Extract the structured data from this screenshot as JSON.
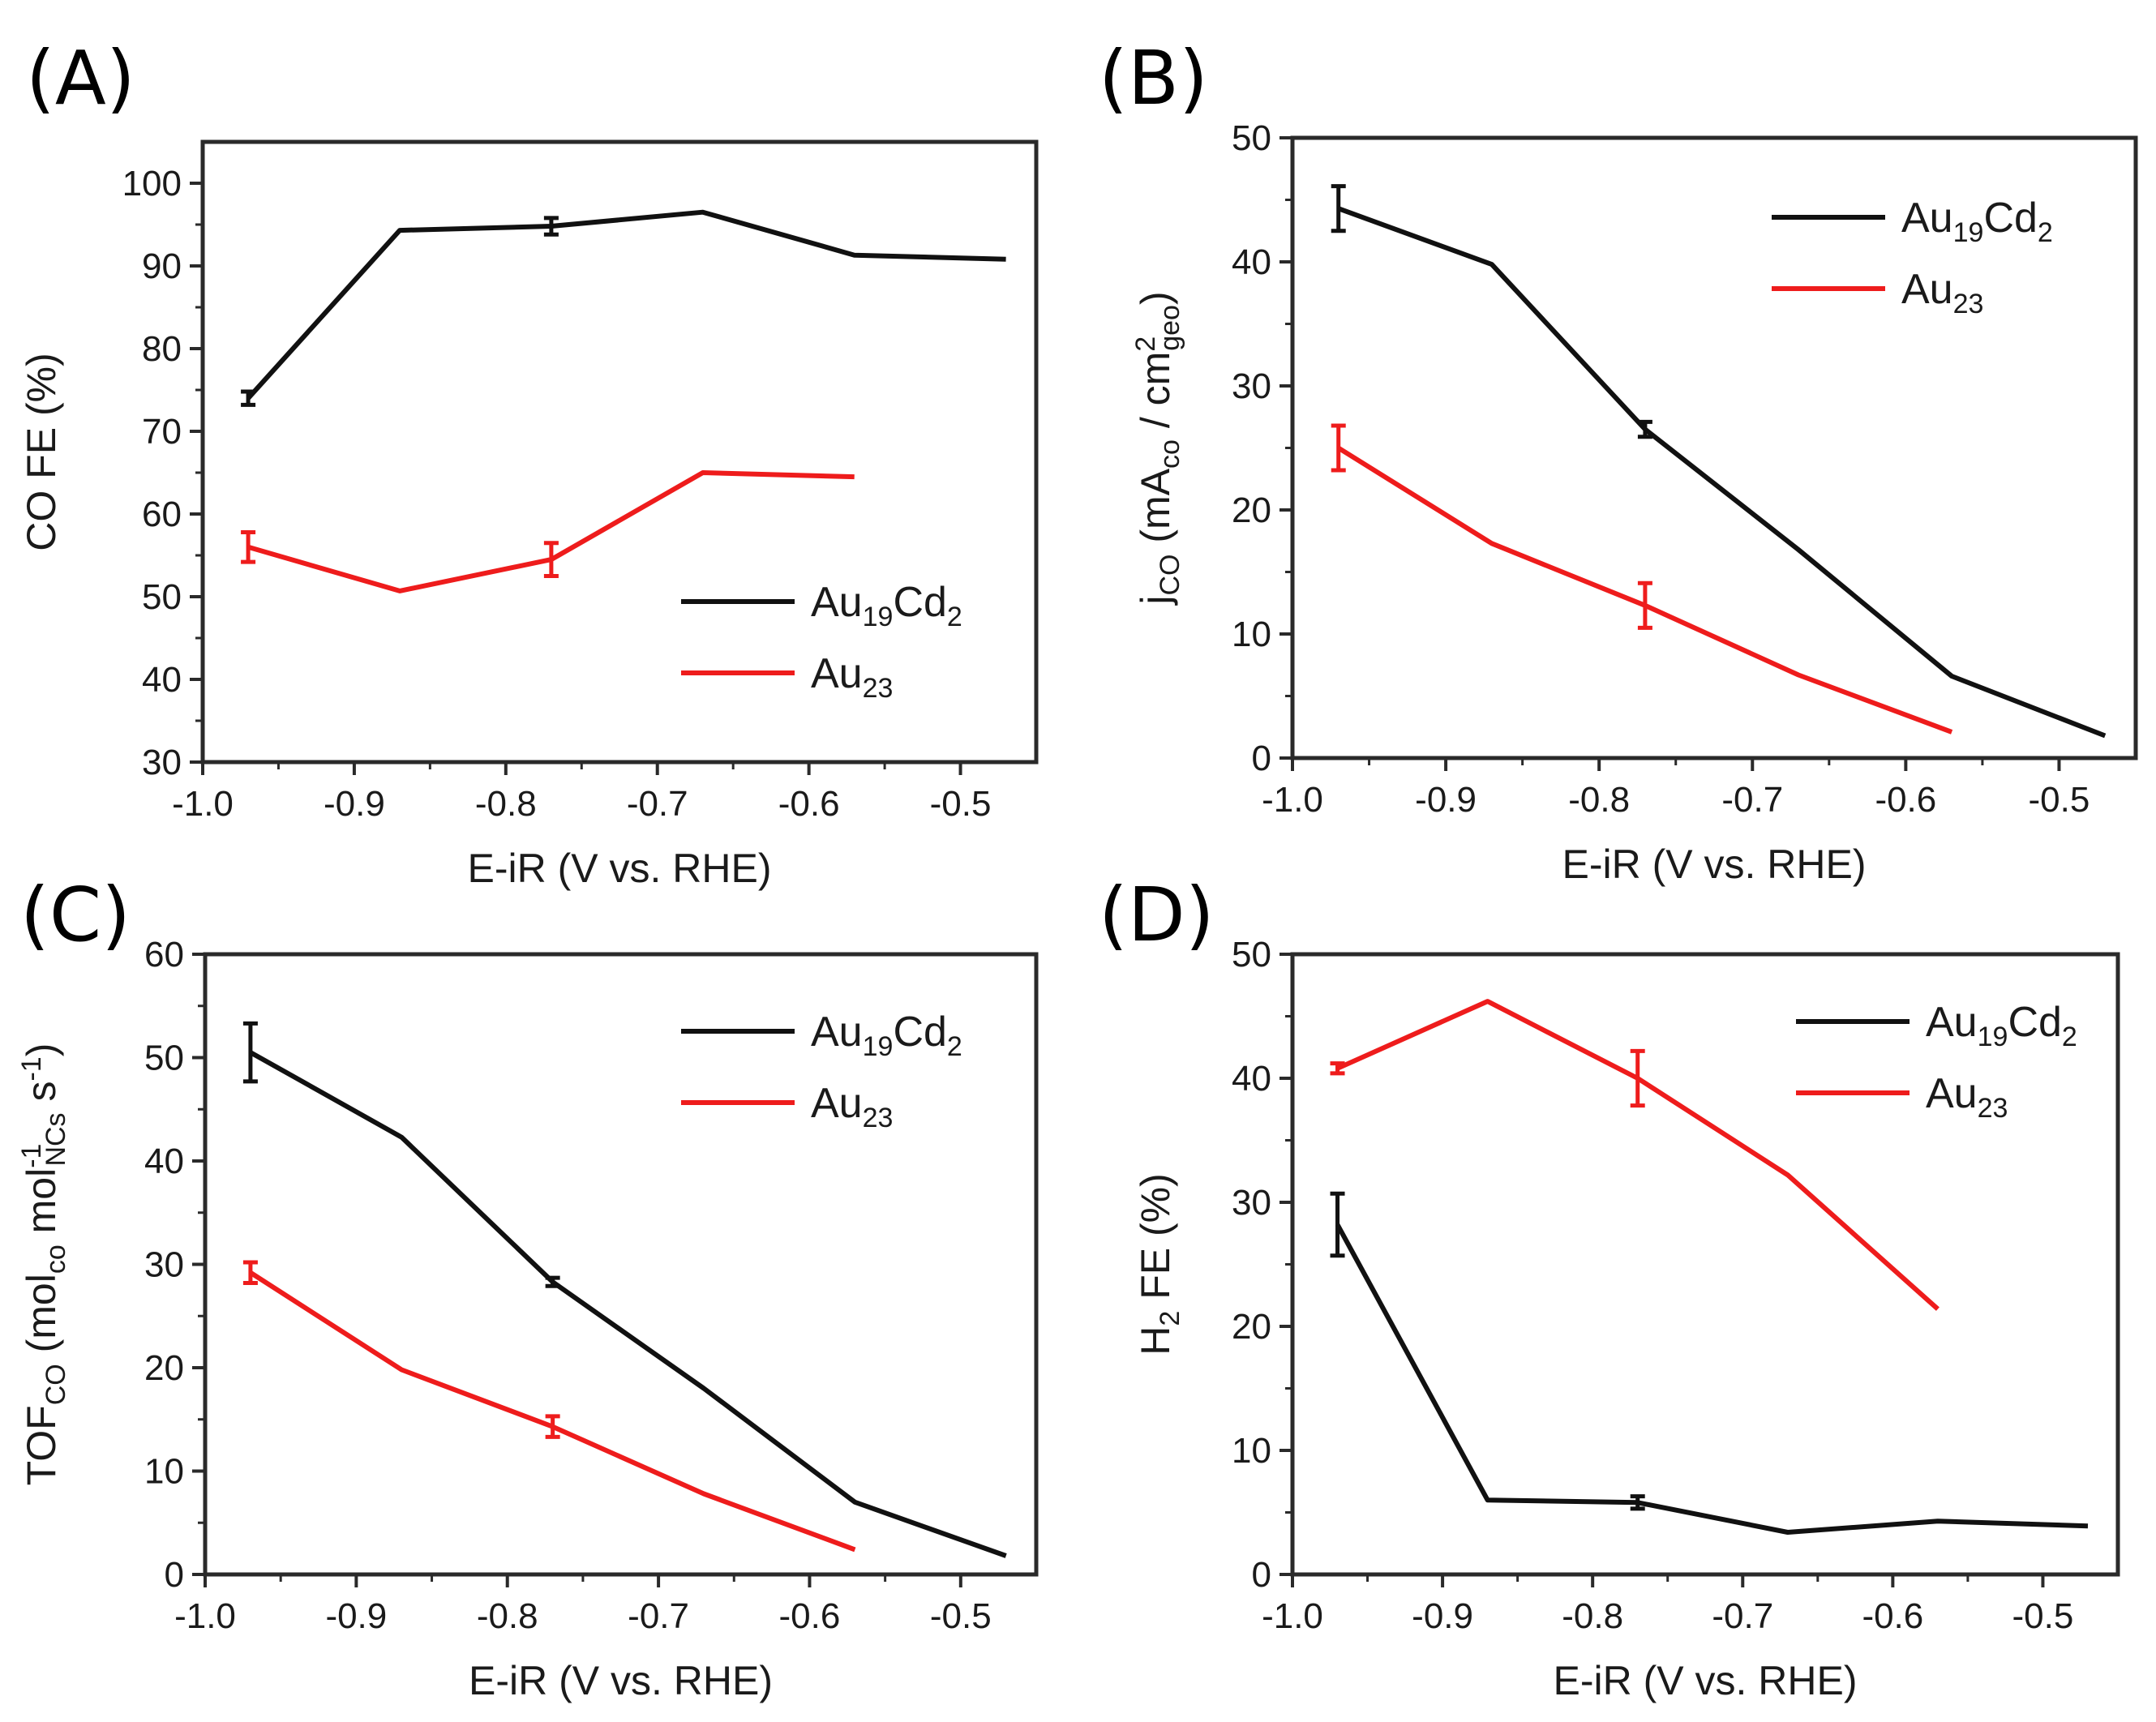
{
  "colors": {
    "Au19Cd2": "#111111",
    "Au23": "#ee1c1c"
  },
  "legend": {
    "Au19Cd2": {
      "base": "Au",
      "sub1": "19",
      "mid": "Cd",
      "sub2": "2"
    },
    "Au23": {
      "base": "Au",
      "sub1": "23"
    }
  },
  "chart_data": [
    {
      "type": "line",
      "panel": "(A)",
      "xlabel": "E-iR (V vs. RHE)",
      "ylabel": "CO FE (%)",
      "xlim": [
        -1.0,
        -0.45
      ],
      "ylim": [
        30,
        105
      ],
      "xticks": [
        -1.0,
        -0.9,
        -0.8,
        -0.7,
        -0.6,
        -0.5
      ],
      "xtick_labels": [
        "-1.0",
        "-0.9",
        "-0.8",
        "-0.7",
        "-0.6",
        "-0.5"
      ],
      "yticks": [
        30,
        40,
        50,
        60,
        70,
        80,
        90,
        100
      ],
      "ytick_labels": [
        "30",
        "40",
        "50",
        "60",
        "70",
        "80",
        "90",
        "100"
      ],
      "legend_position": "lower-right",
      "series": [
        {
          "name": "Au19Cd2",
          "x": [
            -0.97,
            -0.87,
            -0.77,
            -0.67,
            -0.57,
            -0.47
          ],
          "y": [
            74,
            94.3,
            94.8,
            96.5,
            91.3,
            90.8
          ],
          "err": [
            0.8,
            0,
            1.0,
            0,
            0,
            0
          ]
        },
        {
          "name": "Au23",
          "x": [
            -0.97,
            -0.87,
            -0.77,
            -0.67,
            -0.57
          ],
          "y": [
            56,
            50.7,
            54.5,
            65,
            64.5
          ],
          "err": [
            1.8,
            0,
            2.0,
            0,
            0
          ]
        }
      ]
    },
    {
      "type": "line",
      "panel": "(B)",
      "xlabel": "E-iR (V vs. RHE)",
      "ylabel": "jCO (mACO / cm2geo)",
      "ylabel_parts": {
        "j": "j",
        "jsub": "CO",
        "open": " (mA",
        "asub": "co",
        "mid": " / cm",
        "sup": "2",
        "gsub": "geo",
        "close": ")"
      },
      "xlim": [
        -1.0,
        -0.45
      ],
      "ylim": [
        0,
        50
      ],
      "xticks": [
        -1.0,
        -0.9,
        -0.8,
        -0.7,
        -0.6,
        -0.5
      ],
      "xtick_labels": [
        "-1.0",
        "-0.9",
        "-0.8",
        "-0.7",
        "-0.6",
        "-0.5"
      ],
      "yticks": [
        0,
        10,
        20,
        30,
        40,
        50
      ],
      "ytick_labels": [
        "0",
        "10",
        "20",
        "30",
        "40",
        "50"
      ],
      "legend_position": "upper-right",
      "series": [
        {
          "name": "Au19Cd2",
          "x": [
            -0.97,
            -0.87,
            -0.77,
            -0.67,
            -0.57,
            -0.47
          ],
          "y": [
            44.3,
            39.8,
            26.5,
            16.8,
            6.6,
            1.8
          ],
          "err": [
            1.8,
            0,
            0.6,
            0,
            0,
            0
          ]
        },
        {
          "name": "Au23",
          "x": [
            -0.97,
            -0.87,
            -0.77,
            -0.67,
            -0.57
          ],
          "y": [
            25,
            17.3,
            12.3,
            6.7,
            2.1
          ],
          "err": [
            1.8,
            0,
            1.8,
            0,
            0
          ]
        }
      ]
    },
    {
      "type": "line",
      "panel": "(C)",
      "xlabel": "E-iR (V vs. RHE)",
      "ylabel": "TOFCO (molCO mol-1NCs s-1)",
      "ylabel_parts": {
        "a": "TOF",
        "asub": "CO",
        "b": " (mol",
        "bsub": "co",
        "c": " mol",
        "csup": "-1",
        "csub": "NCs",
        "d": " s",
        "dsup": "-1",
        "e": ")"
      },
      "xlim": [
        -1.0,
        -0.45
      ],
      "ylim": [
        0,
        60
      ],
      "xticks": [
        -1.0,
        -0.9,
        -0.8,
        -0.7,
        -0.6,
        -0.5
      ],
      "xtick_labels": [
        "-1.0",
        "-0.9",
        "-0.8",
        "-0.7",
        "-0.6",
        "-0.5"
      ],
      "yticks": [
        0,
        10,
        20,
        30,
        40,
        50,
        60
      ],
      "ytick_labels": [
        "0",
        "10",
        "20",
        "30",
        "40",
        "50",
        "60"
      ],
      "legend_position": "upper-right",
      "series": [
        {
          "name": "Au19Cd2",
          "x": [
            -0.97,
            -0.87,
            -0.77,
            -0.67,
            -0.57,
            -0.47
          ],
          "y": [
            50.5,
            42.3,
            28.3,
            18,
            7,
            1.8
          ],
          "err": [
            2.8,
            0,
            0.4,
            0,
            0,
            0
          ]
        },
        {
          "name": "Au23",
          "x": [
            -0.97,
            -0.87,
            -0.77,
            -0.67,
            -0.57
          ],
          "y": [
            29.2,
            19.8,
            14.3,
            7.8,
            2.4
          ],
          "err": [
            1.0,
            0,
            1.0,
            0,
            0
          ]
        }
      ]
    },
    {
      "type": "line",
      "panel": "(D)",
      "xlabel": "E-iR (V vs. RHE)",
      "ylabel": "H2 FE (%)",
      "ylabel_parts": {
        "a": "H",
        "asub": "2",
        "b": " FE (%)"
      },
      "xlim": [
        -1.0,
        -0.45
      ],
      "ylim": [
        0,
        50
      ],
      "xticks": [
        -1.0,
        -0.9,
        -0.8,
        -0.7,
        -0.6,
        -0.5
      ],
      "xtick_labels": [
        "-1.0",
        "-0.9",
        "-0.8",
        "-0.7",
        "-0.6",
        "-0.5"
      ],
      "yticks": [
        0,
        10,
        20,
        30,
        40,
        50
      ],
      "ytick_labels": [
        "0",
        "10",
        "20",
        "30",
        "40",
        "50"
      ],
      "legend_position": "upper-right",
      "series": [
        {
          "name": "Au19Cd2",
          "x": [
            -0.97,
            -0.87,
            -0.77,
            -0.67,
            -0.57,
            -0.47
          ],
          "y": [
            28.2,
            6.0,
            5.8,
            3.4,
            4.3,
            3.9
          ],
          "err": [
            2.5,
            0,
            0.5,
            0,
            0,
            0
          ]
        },
        {
          "name": "Au23",
          "x": [
            -0.97,
            -0.87,
            -0.77,
            -0.67,
            -0.57
          ],
          "y": [
            40.8,
            46.2,
            40,
            32.2,
            21.4
          ],
          "err": [
            0.4,
            0,
            2.2,
            0,
            0
          ]
        }
      ]
    }
  ]
}
